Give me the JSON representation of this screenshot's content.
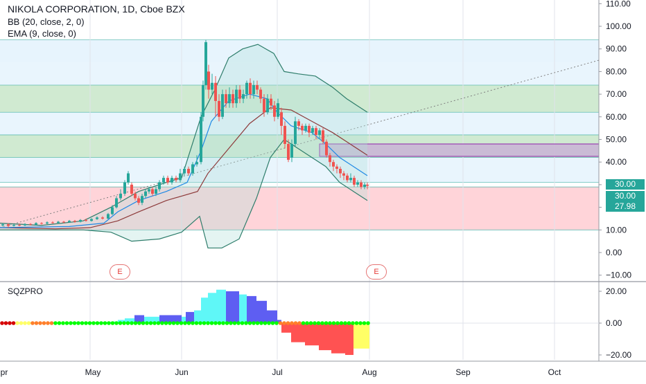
{
  "header": {
    "title": "NIKOLA CORPORATION, 1D, Cboe BZX",
    "indicator_bb": "BB (20, close, 2, 0)",
    "indicator_ema": "EMA (9, close, 0)"
  },
  "price_axis": {
    "labels": [
      "110.00",
      "100.00",
      "90.00",
      "80.00",
      "70.00",
      "60.00",
      "50.00",
      "40.00",
      "30.00",
      "20.00",
      "10.00",
      "0.00",
      "−10.00"
    ],
    "tags": [
      {
        "text": "30.00",
        "color": "#26a69a"
      },
      {
        "text": "30.00",
        "color": "#26a69a"
      },
      {
        "text": "27.98",
        "color": "#26a69a"
      }
    ]
  },
  "oscillator": {
    "title": "SQZPRO",
    "labels": [
      "20.00",
      "0.00",
      "−20.00"
    ]
  },
  "time_axis": {
    "labels": [
      "pr",
      "May",
      "Jun",
      "Jul",
      "Aug",
      "Sep",
      "Oct"
    ]
  },
  "earnings": [
    "E",
    "E"
  ],
  "colors": {
    "up": "#26a69a",
    "down": "#ef5350",
    "blue_zone": "#e3f2fd",
    "green_zone": "#c8e6c9",
    "red_zone": "#ffcdd2",
    "cyan": "#5ff7f7",
    "navy": "#5e5ef2",
    "red_hist": "#ff5252",
    "yellow": "#ffff66",
    "lime": "#00ff00",
    "orange": "#ff7f2a"
  },
  "chart_data": [
    {
      "type": "candlestick",
      "title": "NIKOLA CORPORATION, 1D, Cboe BZX",
      "ylim": [
        -10,
        110
      ],
      "ylabel": "",
      "xlabel": "",
      "x": [
        "Apr",
        "May",
        "Jun",
        "Jul",
        "Aug",
        "Sep",
        "Oct"
      ],
      "series": [
        {
          "name": "BB (20, close, 2, 0)",
          "type": "band"
        },
        {
          "name": "EMA (9, close, 0)",
          "type": "line"
        }
      ],
      "key_levels": [
        30.0,
        30.0,
        27.98
      ],
      "zones": [
        {
          "from": 84,
          "to": 94,
          "color": "#e3f2fd"
        },
        {
          "from": 62,
          "to": 74,
          "color": "#c8e6c9"
        },
        {
          "from": 42,
          "to": 52,
          "color": "#c8e6c9"
        },
        {
          "from": 10,
          "to": 29,
          "color": "#ffcdd2"
        }
      ]
    },
    {
      "type": "bar",
      "title": "SQZPRO",
      "ylim": [
        -22,
        22
      ]
    }
  ]
}
